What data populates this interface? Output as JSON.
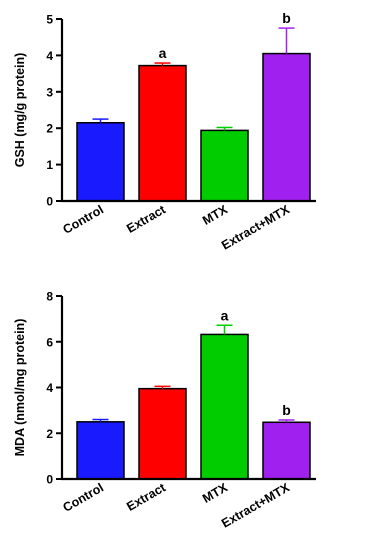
{
  "chart_data": [
    {
      "type": "bar",
      "categories": [
        "Control",
        "Extract",
        "MTX",
        "Extract+MTX"
      ],
      "values": [
        2.15,
        3.72,
        1.94,
        4.05
      ],
      "errors": [
        0.1,
        0.07,
        0.08,
        0.7
      ],
      "significance": [
        "",
        "a",
        "",
        "b"
      ],
      "colors": [
        "#1a1aff",
        "#ff0000",
        "#00cc00",
        "#a020f0"
      ],
      "ylabel": "GSH (mg/g protein)",
      "ylim": [
        0,
        5
      ],
      "yticks": [
        0,
        1,
        2,
        3,
        4,
        5
      ],
      "grid": false
    },
    {
      "type": "bar",
      "categories": [
        "Control",
        "Extract",
        "MTX",
        "Extract+MTX"
      ],
      "values": [
        2.5,
        3.95,
        6.32,
        2.48
      ],
      "errors": [
        0.1,
        0.1,
        0.4,
        0.1
      ],
      "significance": [
        "",
        "",
        "a",
        "b"
      ],
      "colors": [
        "#1a1aff",
        "#ff0000",
        "#00cc00",
        "#a020f0"
      ],
      "ylabel": "MDA (nmol/mg protein)",
      "ylim": [
        0,
        8
      ],
      "yticks": [
        0,
        2,
        4,
        6,
        8
      ],
      "grid": false
    }
  ]
}
